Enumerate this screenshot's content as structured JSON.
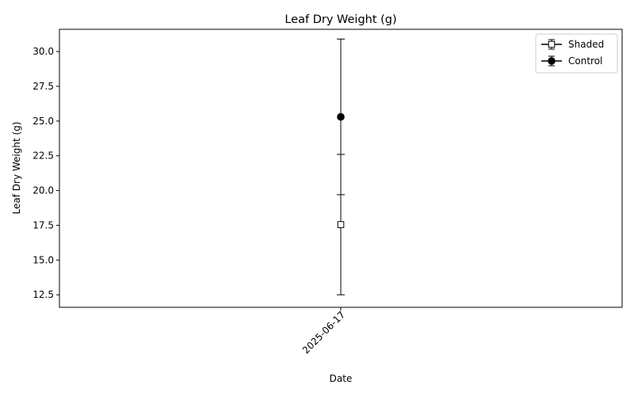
{
  "chart_data": {
    "type": "scatter",
    "title": "Leaf Dry Weight (g)",
    "xlabel": "Date",
    "ylabel": "Leaf Dry Weight (g)",
    "x_categories": [
      "2025-06-17"
    ],
    "ylim": [
      11.6,
      31.6
    ],
    "yticks": [
      "12.5",
      "15.0",
      "17.5",
      "20.0",
      "22.5",
      "25.0",
      "27.5",
      "30.0"
    ],
    "ytick_values": [
      12.5,
      15.0,
      17.5,
      20.0,
      22.5,
      25.0,
      27.5,
      30.0
    ],
    "grid": false,
    "legend_position": "top-right",
    "series": [
      {
        "name": "Shaded",
        "marker": "square-open",
        "color": "#000000",
        "x": "2025-06-17",
        "y": 17.55,
        "yerr": 5.05
      },
      {
        "name": "Control",
        "marker": "circle-filled",
        "color": "#000000",
        "x": "2025-06-17",
        "y": 25.3,
        "yerr": 5.6
      }
    ]
  }
}
